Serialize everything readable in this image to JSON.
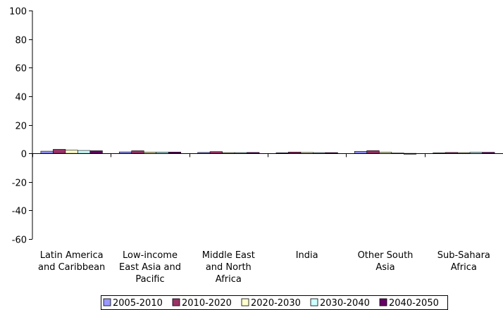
{
  "chart_data": {
    "type": "bar",
    "categories": [
      [
        "Latin America",
        "and Caribbean"
      ],
      [
        "Low-income",
        "East Asia and",
        "Pacific"
      ],
      [
        "Middle East",
        "and North",
        "Africa"
      ],
      [
        "India"
      ],
      [
        "Other South",
        "Asia"
      ],
      [
        "Sub-Sahara",
        "Africa"
      ]
    ],
    "series": [
      {
        "name": "2005-2010",
        "color": "#9999FF",
        "values": [
          1.5,
          1.0,
          0.6,
          0.4,
          1.4,
          0.3
        ]
      },
      {
        "name": "2010-2020",
        "color": "#993366",
        "values": [
          2.8,
          1.8,
          1.2,
          0.9,
          1.9,
          0.6
        ]
      },
      {
        "name": "2020-2030",
        "color": "#FFFFCC",
        "values": [
          2.2,
          0.9,
          0.5,
          0.6,
          0.8,
          0.5
        ]
      },
      {
        "name": "2030-2040",
        "color": "#CCFFFF",
        "values": [
          2.0,
          0.9,
          0.5,
          0.5,
          0.2,
          0.7
        ]
      },
      {
        "name": "2040-2050",
        "color": "#660066",
        "values": [
          1.8,
          0.9,
          0.6,
          0.5,
          -0.6,
          0.7
        ]
      }
    ],
    "ylim": [
      -60,
      100
    ],
    "yticks": [
      -60,
      -40,
      -20,
      0,
      20,
      40,
      60,
      80,
      100
    ],
    "grid": false,
    "legend_position": "bottom",
    "title": "",
    "xlabel": "",
    "ylabel": ""
  }
}
